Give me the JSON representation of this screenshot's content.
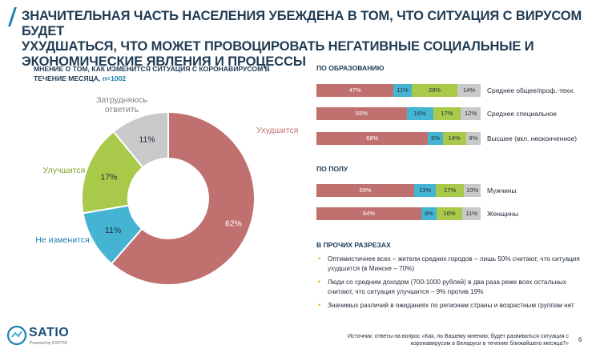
{
  "title": {
    "line1": "ЗНАЧИТЕЛЬНАЯ ЧАСТЬ НАСЕЛЕНИЯ УБЕЖДЕНА В ТОМ, ЧТО СИТУАЦИЯ С ВИРУСОМ БУДЕТ",
    "line2": "УХУДШАТЬСЯ, ЧТО МОЖЕТ ПРОВОЦИРОВАТЬ НЕГАТИВНЫЕ СОЦИАЛЬНЫЕ И",
    "line3": "ЭКОНОМИЧЕСКИЕ ЯВЛЕНИЯ И ПРОЦЕССЫ"
  },
  "donut_subtitle": {
    "text": "МНЕНИЕ О ТОМ, КАК ИЗМЕНИТСЯ СИТУАЦИЯ С КОРОНАВИРУСОМ В ТЕЧЕНИЕ МЕСЯЦА,",
    "n": "n=1002"
  },
  "colors": {
    "worse": "#c0716f",
    "same": "#45b4d3",
    "better": "#a8c94a",
    "dk": "#c9c9c9",
    "title": "#1f3b53",
    "accent": "#1b7fb0"
  },
  "chart_data": [
    {
      "type": "pie",
      "subtype": "donut",
      "title": "МНЕНИЕ О ТОМ, КАК ИЗМЕНИТСЯ СИТУАЦИЯ С КОРОНАВИРУСОМ В ТЕЧЕНИЕ МЕСЯЦА, n=1002",
      "categories": [
        "Ухудшится",
        "Не изменится",
        "Улучшится",
        "Затрудняюсь ответить"
      ],
      "values": [
        62,
        11,
        17,
        11
      ],
      "value_labels": [
        "62%",
        "11%",
        "17%",
        "11%"
      ],
      "colors": [
        "#c0716f",
        "#45b4d3",
        "#a8c94a",
        "#c9c9c9"
      ],
      "label_colors": [
        "#c0716f",
        "#1b7fb0",
        "#7ea52a",
        "#7f7f7f"
      ]
    },
    {
      "type": "bar",
      "orientation": "horizontal",
      "stacked": true,
      "title": "ПО ОБРАЗОВАНИЮ",
      "categories": [
        "Среднее общее/проф.-техн.",
        "Среднее специальное",
        "Высшее (вкл. неоконченное)"
      ],
      "series": [
        {
          "name": "Ухудшится",
          "values": [
            47,
            55,
            68
          ],
          "labels": [
            "47%",
            "55%",
            "68%"
          ]
        },
        {
          "name": "Не изменится",
          "values": [
            11,
            16,
            9
          ],
          "labels": [
            "11%",
            "16%",
            "9%"
          ]
        },
        {
          "name": "Улучшится",
          "values": [
            28,
            17,
            14
          ],
          "labels": [
            "28%",
            "17%",
            "14%"
          ]
        },
        {
          "name": "Затрудняюсь ответить",
          "values": [
            14,
            12,
            9
          ],
          "labels": [
            "14%",
            "12%",
            "9%"
          ]
        }
      ]
    },
    {
      "type": "bar",
      "orientation": "horizontal",
      "stacked": true,
      "title": "ПО ПОЛУ",
      "categories": [
        "Мужчины",
        "Женщины"
      ],
      "series": [
        {
          "name": "Ухудшится",
          "values": [
            59,
            64
          ],
          "labels": [
            "59%",
            "64%"
          ]
        },
        {
          "name": "Не изменится",
          "values": [
            13,
            9
          ],
          "labels": [
            "13%",
            "9%"
          ]
        },
        {
          "name": "Улучшится",
          "values": [
            17,
            16
          ],
          "labels": [
            "17%",
            "16%"
          ]
        },
        {
          "name": "Затрудняюсь ответить",
          "values": [
            10,
            11
          ],
          "labels": [
            "10%",
            "11%"
          ]
        }
      ]
    }
  ],
  "other_section": {
    "title": "В ПРОЧИХ РАЗРЕЗАХ",
    "bullets": [
      "Оптимистичнее всех – жители средних городов – лишь 50% считают, что ситуация ухудшится (в Минске – 70%)",
      "Люди со средним доходом (700-1000 рублей) в два раза реже всех остальных считают, что ситуация улучшится – 9% против 19%",
      "Значимых различий в ожиданиях по регионам страны и возрастным группам нет"
    ]
  },
  "logo": {
    "name": "SATIO",
    "tagline": "Powered by CIVITTA"
  },
  "source": "Источник: ответы на вопрос «Как, по Вашему мнению, будет развиваться ситуация с коронавирусом в Беларуси в течение ближайшего месяца?»",
  "page_number": "6"
}
